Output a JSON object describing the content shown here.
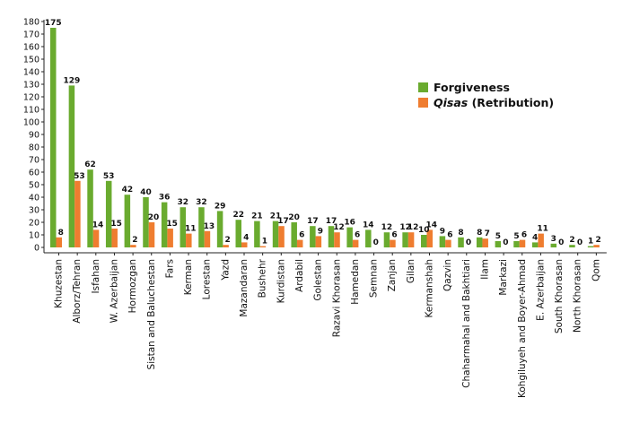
{
  "chart_data": {
    "type": "bar",
    "title": "",
    "xlabel": "",
    "ylabel": "",
    "ylim": [
      0,
      180
    ],
    "yticks": [
      0,
      10,
      20,
      30,
      40,
      50,
      60,
      70,
      80,
      90,
      100,
      110,
      120,
      130,
      140,
      150,
      160,
      170,
      180
    ],
    "legend_position": "top-right",
    "categories": [
      "Khuzestan",
      "Alborz/Tehran",
      "Isfahan",
      "W. Azerbaijan",
      "Hormozgan",
      "Sistan and Baluchestan",
      "Fars",
      "Kerman",
      "Lorestan",
      "Yazd",
      "Mazandaran",
      "Bushehr",
      "Kurdistan",
      "Ardabil",
      "Golestan",
      "Razavi Khorasan",
      "Hamedan",
      "Semnan",
      "Zanjan",
      "Gilan",
      "Kermanshah",
      "Qazvin",
      "Chaharmahal and Bakhtiari",
      "Ilam",
      "Markazi",
      "Kohgiluyeh and Boyer-Ahmad",
      "E. Azerbaijan",
      "South Khorasan",
      "North Khorasan",
      "Qom"
    ],
    "series": [
      {
        "name": "Forgiveness",
        "legend_label": "Forgiveness",
        "color": "#6aab2f",
        "values": [
          175,
          129,
          62,
          53,
          42,
          40,
          36,
          32,
          32,
          29,
          22,
          21,
          21,
          20,
          17,
          17,
          16,
          14,
          12,
          12,
          10,
          9,
          8,
          8,
          5,
          5,
          4,
          3,
          2,
          1
        ]
      },
      {
        "name": "Qisas (Retribution)",
        "legend_label_italic": "Qisas",
        "legend_label_rest": " (Retribution)",
        "color": "#ef7d30",
        "values": [
          8,
          53,
          14,
          15,
          2,
          20,
          15,
          11,
          13,
          2,
          4,
          1,
          17,
          6,
          9,
          12,
          6,
          0,
          6,
          12,
          14,
          6,
          0,
          7,
          0,
          6,
          11,
          0,
          0,
          2
        ]
      }
    ]
  }
}
